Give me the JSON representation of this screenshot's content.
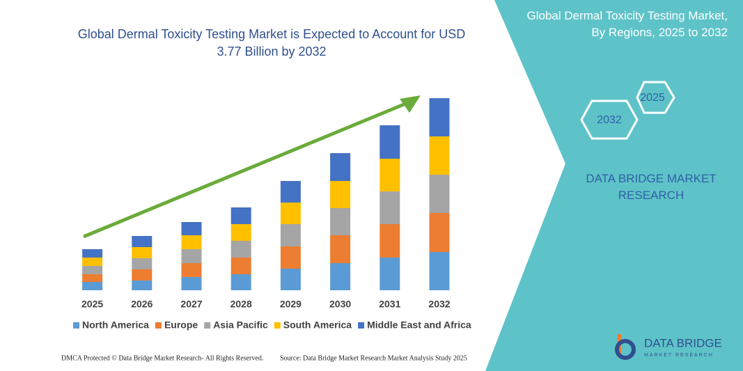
{
  "chart_data": {
    "type": "stacked-bar",
    "title": "Global Dermal Toxicity Testing Market is Expected to Account for USD 3.77 Billion by 2032",
    "categories": [
      "2025",
      "2026",
      "2027",
      "2028",
      "2029",
      "2030",
      "2031",
      "2032"
    ],
    "series": [
      {
        "name": "North America",
        "color": "#5b9bd5",
        "values": [
          12,
          14,
          19,
          23,
          31,
          39,
          47,
          55
        ]
      },
      {
        "name": "Europe",
        "color": "#ed7d31",
        "values": [
          11,
          16,
          20,
          24,
          32,
          40,
          48,
          56
        ]
      },
      {
        "name": "Asia Pacific",
        "color": "#a5a5a5",
        "values": [
          12,
          16,
          20,
          24,
          32,
          39,
          47,
          55
        ]
      },
      {
        "name": "South America",
        "color": "#ffc000",
        "values": [
          12,
          16,
          20,
          24,
          31,
          39,
          47,
          55
        ]
      },
      {
        "name": "Middle East and Africa",
        "color": "#4472c4",
        "values": [
          12,
          16,
          19,
          24,
          31,
          40,
          48,
          55
        ]
      }
    ],
    "ylim": [
      0,
      300
    ]
  },
  "panel": {
    "title": "Global Dermal Toxicity Testing Market, By Regions, 2025 to 2032",
    "hexagons": [
      "2025",
      "2032"
    ],
    "brand": "DATA BRIDGE MARKET RESEARCH"
  },
  "logo": {
    "name": "DATA BRIDGE",
    "tagline": "MARKET RESEARCH"
  },
  "footer": {
    "left": "DMCA Protected © Data Bridge Market Research- All Rights Reserved.",
    "right": "Source: Data Bridge Market Research Market Analysis Study 2025"
  }
}
